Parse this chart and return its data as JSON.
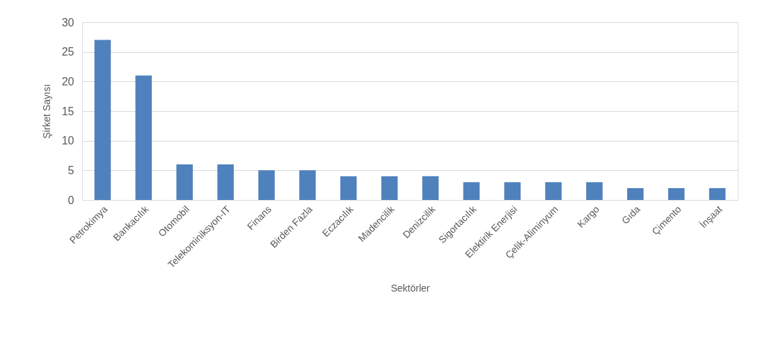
{
  "chart_data": {
    "type": "bar",
    "xlabel": "Sektörler",
    "ylabel": "Şirket Sayısı",
    "categories": [
      "Petrokimya",
      "Bankacılık",
      "Otomobil",
      "Telekominiksyon-IT",
      "Finans",
      "Birden Fazla",
      "Eczacılık",
      "Madencilik",
      "Denizcilik",
      "Sigortacılık",
      "Elektirik Enerjisi",
      "Çelik-Aliminyum",
      "Kargo",
      "Gıda",
      "Çimento",
      "İnşaat"
    ],
    "values": [
      27,
      21,
      6,
      6,
      5,
      5,
      4,
      4,
      4,
      3,
      3,
      3,
      3,
      2,
      2,
      2
    ],
    "color": "#4f81bd",
    "ylim": [
      0,
      30
    ],
    "yticks": [
      0,
      5,
      10,
      15,
      20,
      25,
      30
    ],
    "grid": "y"
  }
}
